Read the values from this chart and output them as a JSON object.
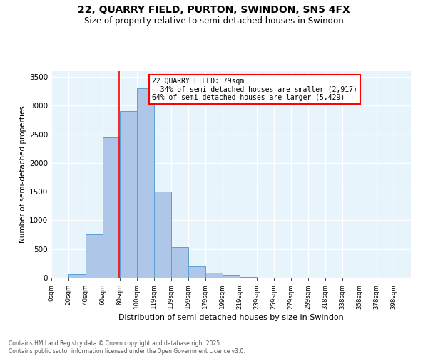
{
  "title_line1": "22, QUARRY FIELD, PURTON, SWINDON, SN5 4FX",
  "title_line2": "Size of property relative to semi-detached houses in Swindon",
  "xlabel": "Distribution of semi-detached houses by size in Swindon",
  "ylabel": "Number of semi-detached properties",
  "bin_labels": [
    "0sqm",
    "20sqm",
    "40sqm",
    "60sqm",
    "80sqm",
    "100sqm",
    "119sqm",
    "139sqm",
    "159sqm",
    "179sqm",
    "199sqm",
    "219sqm",
    "239sqm",
    "259sqm",
    "279sqm",
    "299sqm",
    "318sqm",
    "338sqm",
    "358sqm",
    "378sqm",
    "398sqm"
  ],
  "bin_values": [
    0,
    60,
    760,
    2450,
    2900,
    3300,
    1500,
    530,
    200,
    85,
    50,
    10,
    0,
    0,
    0,
    0,
    0,
    0,
    0,
    0,
    0
  ],
  "bar_color": "#aec6e8",
  "bar_edge_color": "#5a9fd4",
  "red_line_x": 3.95,
  "annotation_text": "22 QUARRY FIELD: 79sqm\n← 34% of semi-detached houses are smaller (2,917)\n64% of semi-detached houses are larger (5,429) →",
  "annotation_box_color": "white",
  "annotation_box_edge_color": "red",
  "ylim": [
    0,
    3600
  ],
  "yticks": [
    0,
    500,
    1000,
    1500,
    2000,
    2500,
    3000,
    3500
  ],
  "background_color": "#e8f4fc",
  "footer_line1": "Contains HM Land Registry data © Crown copyright and database right 2025.",
  "footer_line2": "Contains public sector information licensed under the Open Government Licence v3.0.",
  "fig_width": 6.0,
  "fig_height": 5.0,
  "dpi": 100
}
